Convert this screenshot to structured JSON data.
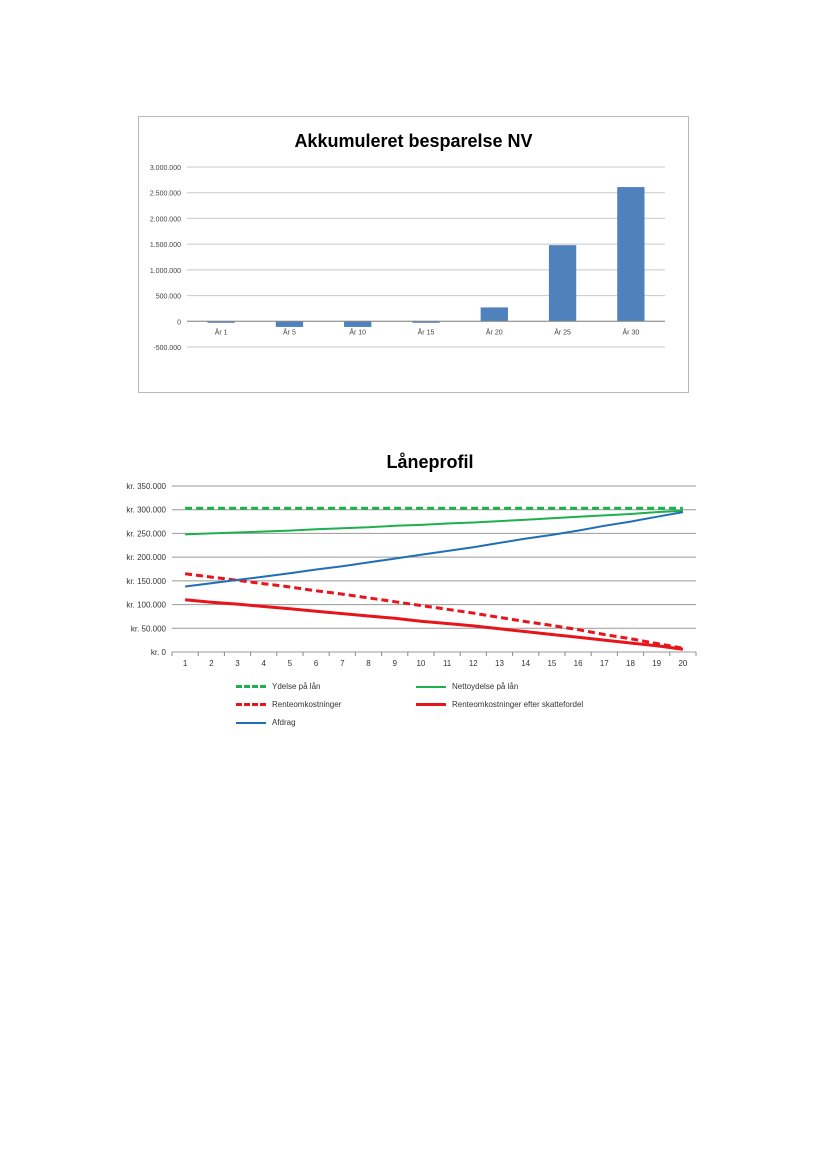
{
  "charts": {
    "bar": {
      "title": "Akkumuleret besparelse NV"
    },
    "line": {
      "title": "Låneprofil",
      "legend": [
        {
          "label": "Ydelse på lån",
          "color": "#1fb04e",
          "dashed": true
        },
        {
          "label": "Nettoydelse på lån",
          "color": "#1fb04e",
          "dashed": false
        },
        {
          "label": "Renteomkostninger",
          "color": "#e8141b",
          "dashed": true
        },
        {
          "label": "Renteomkostninger efter skattefordel",
          "color": "#e8141b",
          "dashed": false
        },
        {
          "label": "Afdrag",
          "color": "#1f6fb6",
          "dashed": false
        }
      ]
    }
  },
  "chart_data": [
    {
      "type": "bar",
      "title": "Akkumuleret besparelse NV",
      "categories": [
        "År 1",
        "År 5",
        "År 10",
        "År 15",
        "År 20",
        "År 25",
        "År 30"
      ],
      "values": [
        -20000,
        -110000,
        -110000,
        -5000,
        270000,
        1480000,
        2610000
      ],
      "ylim": [
        -500000,
        3000000
      ],
      "yticks": [
        "-500.000",
        "0",
        "500.000",
        "1.000.000",
        "1.500.000",
        "2.000.000",
        "2.500.000",
        "3.000.000"
      ],
      "color": "#4f81bd",
      "grid": true
    },
    {
      "type": "line",
      "title": "Låneprofil",
      "x": [
        1,
        2,
        3,
        4,
        5,
        6,
        7,
        8,
        9,
        10,
        11,
        12,
        13,
        14,
        15,
        16,
        17,
        18,
        19,
        20
      ],
      "ylim": [
        0,
        350000
      ],
      "yticks": [
        "kr. 0",
        "kr. 50.000",
        "kr. 100.000",
        "kr. 150.000",
        "kr. 200.000",
        "kr. 250.000",
        "kr. 300.000",
        "kr. 350.000"
      ],
      "grid": true,
      "legend_position": "bottom",
      "series": [
        {
          "name": "Ydelse på lån",
          "color": "#1fb04e",
          "dashed": true,
          "values": [
            303000,
            303000,
            303000,
            303000,
            303000,
            303000,
            303000,
            303000,
            303000,
            303000,
            303000,
            303000,
            303000,
            303000,
            303000,
            303000,
            303000,
            303000,
            303000,
            303000
          ]
        },
        {
          "name": "Nettoydelse på lån",
          "color": "#1fb04e",
          "dashed": false,
          "values": [
            248000,
            250000,
            252000,
            254000,
            256000,
            259000,
            261000,
            263000,
            266000,
            268000,
            271000,
            273000,
            276000,
            279000,
            282000,
            285000,
            288000,
            291000,
            295000,
            298000
          ]
        },
        {
          "name": "Renteomkostninger",
          "color": "#e8141b",
          "dashed": true,
          "values": [
            165000,
            158000,
            151000,
            144000,
            137000,
            129000,
            122000,
            114000,
            106000,
            98000,
            90000,
            82000,
            73000,
            64000,
            56000,
            47000,
            37000,
            28000,
            18000,
            8000
          ]
        },
        {
          "name": "Renteomkostninger efter skattefordel",
          "color": "#e8141b",
          "dashed": false,
          "values": [
            110000,
            105000,
            101000,
            96000,
            91000,
            86000,
            81000,
            76000,
            71000,
            65000,
            60000,
            55000,
            49000,
            43000,
            37000,
            31000,
            25000,
            19000,
            13000,
            6000
          ]
        },
        {
          "name": "Afdrag",
          "color": "#1f6fb6",
          "dashed": false,
          "values": [
            138000,
            145000,
            152000,
            159000,
            166000,
            174000,
            181000,
            189000,
            197000,
            205000,
            213000,
            221000,
            230000,
            239000,
            247000,
            256000,
            266000,
            275000,
            285000,
            295000
          ]
        }
      ]
    }
  ]
}
